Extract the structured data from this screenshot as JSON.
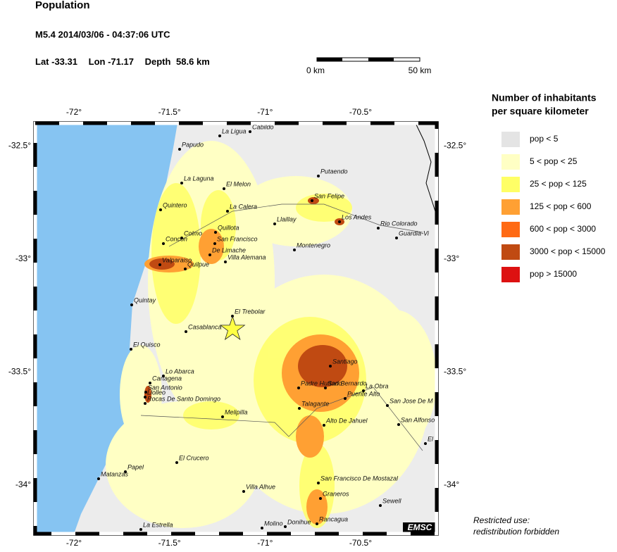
{
  "header": {
    "title": "Population",
    "event": "M5.4  2014/03/06 - 04:37:06 UTC"
  },
  "epicenter": {
    "lat": {
      "label": "Lat",
      "value": -33.31
    },
    "lon": {
      "label": "Lon",
      "value": -71.17
    },
    "depth": {
      "label": "Depth",
      "value": 58.6,
      "unit": "km"
    }
  },
  "scale_bar": {
    "start": "0 km",
    "end": "50 km"
  },
  "lon_ticks": [
    {
      "value": -72,
      "label": "-72°"
    },
    {
      "value": -71.5,
      "label": "-71.5°"
    },
    {
      "value": -71,
      "label": "-71°"
    },
    {
      "value": -70.5,
      "label": "-70.5°"
    }
  ],
  "lat_ticks": [
    {
      "value": -32.5,
      "label": "-32.5°"
    },
    {
      "value": -33,
      "label": "-33°"
    },
    {
      "value": -33.5,
      "label": "-33.5°"
    },
    {
      "value": -34,
      "label": "-34°"
    }
  ],
  "legend": {
    "title": [
      "Number of inhabitants",
      "per square kilometer"
    ],
    "items": [
      {
        "label": "pop < 5",
        "color": "#e4e4e4"
      },
      {
        "label": "5 < pop < 25",
        "color": "#ffffc4"
      },
      {
        "label": "25 < pop < 125",
        "color": "#ffff66"
      },
      {
        "label": "125 < pop < 600",
        "color": "#ffa033"
      },
      {
        "label": "600 < pop < 3000",
        "color": "#ff6a14"
      },
      {
        "label": "3000 < pop < 15000",
        "color": "#c04a12"
      },
      {
        "label": "pop > 15000",
        "color": "#dd1111"
      }
    ]
  },
  "cities": [
    "La Ligua",
    "Cabildo",
    "Papudo",
    "Putaendo",
    "La Laguna",
    "El Melon",
    "Quintero",
    "La Calera",
    "San Felipe",
    "Los Andes",
    "Llaillay",
    "Rio Colorado",
    "Guardia-Vi",
    "Colmo",
    "Concon",
    "Quillota",
    "San Francisco",
    "Montenegro",
    "De Limache",
    "Valparaiso",
    "Villa Alemana",
    "Quilpue",
    "Quintay",
    "El Trebolar",
    "Casablanca",
    "El Quisco",
    "Santiago",
    "Lo Abarca",
    "Cartagena",
    "San Antonio",
    "Llolleo",
    "Rocas De Santo Domingo",
    "Padre Hurtado",
    "San Bernardo",
    "La Obra",
    "Puente Alto",
    "San Jose De M",
    "Talagante",
    "Melipilla",
    "Alto De Jahuel",
    "San Alfonso",
    "El I",
    "El Crucero",
    "Papel",
    "Matanzas",
    "San Francisco De Mostazal",
    "Villa Alhue",
    "Graneros",
    "Sewell",
    "Rancagua",
    "Molino",
    "Donihue",
    "La Estrella"
  ],
  "credit": "EMSC",
  "notice": [
    "Restricted use:",
    "redistribution forbidden"
  ]
}
